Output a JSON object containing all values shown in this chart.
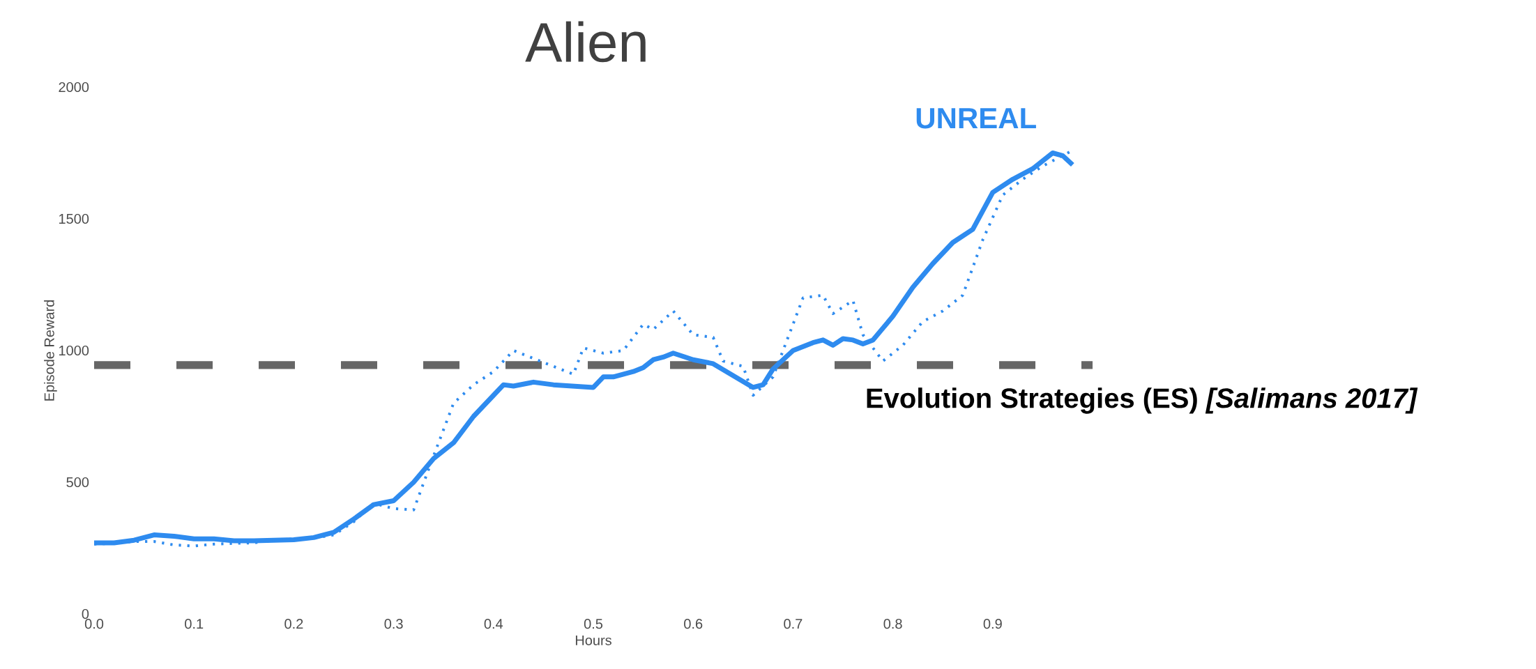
{
  "chart_data": {
    "type": "line",
    "title": "Alien",
    "xlabel": "Hours",
    "ylabel": "Episode Reward",
    "xlim": [
      0,
      1.0
    ],
    "ylim": [
      0,
      2000
    ],
    "xticks": [
      {
        "value": 0,
        "label": "0.0"
      },
      0.1,
      0.2,
      0.3,
      0.4,
      0.5,
      0.6,
      0.7,
      0.8,
      0.9
    ],
    "yticks": [
      0,
      500,
      1000,
      1500,
      2000
    ],
    "series": [
      {
        "name": "UNREAL",
        "color": "#2e8bef",
        "line_style": "solid",
        "x": [
          0,
          0.02,
          0.04,
          0.06,
          0.08,
          0.1,
          0.12,
          0.14,
          0.16,
          0.18,
          0.2,
          0.22,
          0.24,
          0.26,
          0.28,
          0.3,
          0.32,
          0.34,
          0.36,
          0.38,
          0.4,
          0.41,
          0.42,
          0.44,
          0.46,
          0.48,
          0.5,
          0.51,
          0.52,
          0.54,
          0.55,
          0.56,
          0.57,
          0.58,
          0.6,
          0.62,
          0.64,
          0.66,
          0.67,
          0.68,
          0.7,
          0.72,
          0.73,
          0.74,
          0.75,
          0.76,
          0.77,
          0.78,
          0.8,
          0.82,
          0.84,
          0.86,
          0.88,
          0.9,
          0.92,
          0.94,
          0.96,
          0.97,
          0.98
        ],
        "values": [
          270,
          270,
          280,
          300,
          295,
          285,
          285,
          278,
          278,
          280,
          282,
          290,
          310,
          360,
          415,
          430,
          500,
          590,
          650,
          750,
          830,
          870,
          865,
          880,
          870,
          865,
          860,
          900,
          900,
          920,
          935,
          965,
          975,
          990,
          965,
          950,
          905,
          860,
          870,
          930,
          1000,
          1030,
          1040,
          1020,
          1045,
          1040,
          1025,
          1040,
          1130,
          1240,
          1330,
          1410,
          1460,
          1600,
          1650,
          1690,
          1750,
          1740,
          1705
        ]
      },
      {
        "color": "#2e8bef",
        "line_style": "dotted",
        "x": [
          0,
          0.02,
          0.04,
          0.06,
          0.08,
          0.1,
          0.12,
          0.14,
          0.16,
          0.18,
          0.2,
          0.22,
          0.24,
          0.26,
          0.28,
          0.3,
          0.32,
          0.34,
          0.36,
          0.38,
          0.4,
          0.42,
          0.44,
          0.46,
          0.48,
          0.49,
          0.51,
          0.53,
          0.55,
          0.56,
          0.58,
          0.6,
          0.62,
          0.63,
          0.65,
          0.66,
          0.68,
          0.7,
          0.71,
          0.73,
          0.74,
          0.76,
          0.77,
          0.79,
          0.81,
          0.83,
          0.85,
          0.87,
          0.89,
          0.91,
          0.93,
          0.95,
          0.98
        ],
        "values": [
          265,
          268,
          275,
          275,
          262,
          258,
          265,
          268,
          270,
          280,
          285,
          288,
          300,
          350,
          420,
          400,
          395,
          600,
          800,
          870,
          920,
          1000,
          970,
          940,
          910,
          1010,
          990,
          1000,
          1100,
          1080,
          1150,
          1060,
          1050,
          960,
          940,
          830,
          900,
          1100,
          1200,
          1210,
          1140,
          1190,
          1060,
          960,
          1020,
          1110,
          1150,
          1210,
          1420,
          1590,
          1650,
          1700,
          1760
        ]
      }
    ],
    "ref_lines": [
      {
        "axis": "y",
        "value": 945,
        "label": "Evolution Strategies (ES) *[Salimans 2017]*",
        "color": "#666666",
        "line_style": "dashed"
      }
    ]
  }
}
